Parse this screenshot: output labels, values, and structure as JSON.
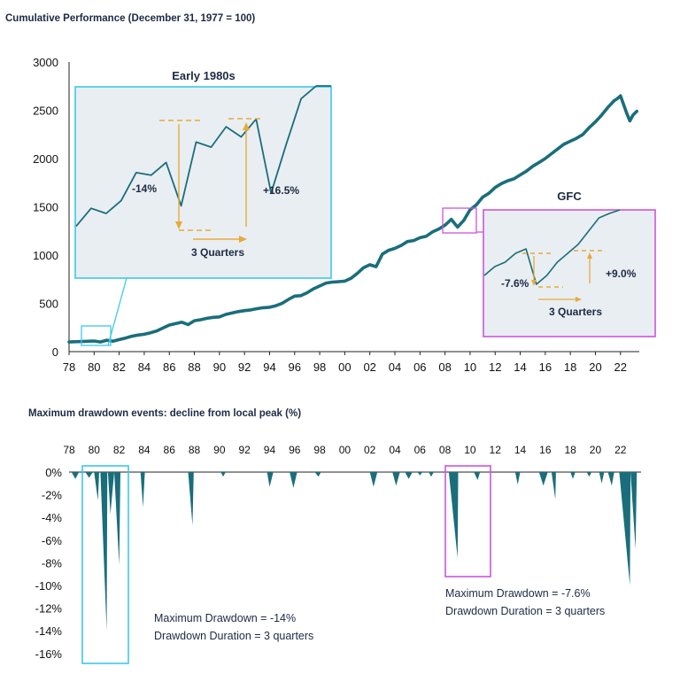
{
  "top_chart": {
    "title": "Cumulative Performance (December 31, 1977 = 100)",
    "y_ticks": [
      "3000",
      "2500",
      "2000",
      "1500",
      "1000",
      "500",
      "0"
    ],
    "x_ticks": [
      "78",
      "80",
      "82",
      "84",
      "86",
      "88",
      "90",
      "92",
      "94",
      "96",
      "98",
      "00",
      "02",
      "04",
      "06",
      "08",
      "10",
      "12",
      "14",
      "16",
      "18",
      "20",
      "22"
    ]
  },
  "inset_early": {
    "title": "Early 1980s",
    "drawdown_label": "-14%",
    "recovery_label": "+16.5%",
    "duration_label": "3 Quarters"
  },
  "inset_gfc": {
    "title": "GFC",
    "drawdown_label": "-7.6%",
    "recovery_label": "+9.0%",
    "duration_label": "3 Quarters"
  },
  "bottom_chart": {
    "title": "Maximum drawdown events: decline from local peak (%)",
    "y_ticks": [
      "0%",
      "-2%",
      "-4%",
      "-6%",
      "-8%",
      "-10%",
      "-12%",
      "-14%",
      "-16%"
    ],
    "x_ticks": [
      "78",
      "80",
      "82",
      "84",
      "86",
      "88",
      "90",
      "92",
      "94",
      "96",
      "98",
      "00",
      "02",
      "04",
      "06",
      "08",
      "10",
      "12",
      "14",
      "16",
      "18",
      "20",
      "22"
    ],
    "note_early_line1": "Maximum Drawdown = -14%",
    "note_early_line2": "Drawdown Duration = 3 quarters",
    "note_gfc_line1": "Maximum Drawdown = -7.6%",
    "note_gfc_line2": "Drawdown Duration = 3 quarters"
  },
  "colors": {
    "series": "#1a6e7b",
    "early": "#3cc8ea",
    "gfc": "#cc55dd",
    "arrow": "#e8aa3a",
    "inset_bg": "#e9eef2"
  },
  "chart_data": [
    {
      "type": "line",
      "title": "Cumulative Performance (December 31, 1977 = 100)",
      "xlabel": "",
      "ylabel": "",
      "ylim": [
        0,
        3000
      ],
      "xlim": [
        1978,
        2023.5
      ],
      "series": [
        {
          "name": "Cumulative Performance",
          "x": [
            1978,
            1979,
            1980,
            1980.5,
            1981,
            1981.5,
            1982,
            1982.5,
            1983,
            1983.5,
            1984,
            1984.5,
            1985,
            1985.5,
            1986,
            1986.5,
            1987,
            1987.5,
            1988,
            1988.5,
            1989,
            1989.5,
            1990,
            1990.5,
            1991,
            1991.5,
            1992,
            1992.5,
            1993,
            1993.5,
            1994,
            1994.5,
            1995,
            1995.5,
            1996,
            1996.5,
            1997,
            1997.5,
            1998,
            1998.5,
            1999,
            1999.5,
            2000,
            2000.5,
            2001,
            2001.5,
            2002,
            2002.5,
            2003,
            2003.5,
            2004,
            2004.5,
            2005,
            2005.5,
            2006,
            2006.5,
            2007,
            2007.5,
            2008,
            2008.25,
            2008.5,
            2009,
            2009.5,
            2010,
            2010.5,
            2011,
            2011.5,
            2012,
            2012.5,
            2013,
            2013.5,
            2014,
            2014.5,
            2015,
            2015.5,
            2016,
            2016.5,
            2017,
            2017.5,
            2018,
            2018.5,
            2019,
            2019.5,
            2020,
            2020.5,
            2021,
            2021.5,
            2021.75,
            2022,
            2022.25,
            2022.5,
            2022.75,
            2023,
            2023.3
          ],
          "values": [
            100,
            105,
            110,
            100,
            118,
            108,
            125,
            140,
            160,
            172,
            180,
            195,
            215,
            245,
            275,
            290,
            305,
            280,
            320,
            330,
            345,
            355,
            360,
            385,
            400,
            415,
            425,
            432,
            445,
            455,
            460,
            475,
            500,
            540,
            575,
            580,
            610,
            650,
            680,
            710,
            720,
            725,
            730,
            760,
            810,
            870,
            900,
            880,
            1010,
            1050,
            1070,
            1100,
            1140,
            1150,
            1180,
            1195,
            1240,
            1270,
            1310,
            1340,
            1370,
            1290,
            1360,
            1470,
            1520,
            1600,
            1640,
            1700,
            1740,
            1770,
            1790,
            1830,
            1870,
            1920,
            1960,
            2000,
            2050,
            2100,
            2150,
            2180,
            2210,
            2250,
            2320,
            2380,
            2450,
            2530,
            2600,
            2620,
            2650,
            2560,
            2470,
            2390,
            2450,
            2490
          ]
        }
      ]
    },
    {
      "type": "line",
      "title": "Early 1980s",
      "series": [
        {
          "name": "Early 1980s detail",
          "x": [
            0,
            1,
            2,
            3,
            4,
            5,
            6,
            7,
            8,
            9,
            10,
            11,
            12,
            13,
            14,
            15,
            16,
            17
          ],
          "values": [
            100,
            107,
            105,
            110,
            121,
            120,
            125,
            108,
            133,
            131,
            139,
            135,
            142,
            113,
            132,
            150,
            155,
            160
          ]
        }
      ],
      "annotations": [
        "-14%",
        "+16.5%",
        "3 Quarters"
      ]
    },
    {
      "type": "line",
      "title": "GFC",
      "series": [
        {
          "name": "GFC detail",
          "x": [
            0,
            1,
            2,
            3,
            4,
            5,
            6,
            7,
            8,
            9,
            10,
            11,
            12,
            13
          ],
          "values": [
            100,
            102,
            103,
            105,
            106,
            98,
            100,
            103,
            105,
            107,
            110,
            113,
            114,
            116
          ]
        }
      ],
      "annotations": [
        "-7.6%",
        "+9.0%",
        "3 Quarters"
      ]
    },
    {
      "type": "area",
      "title": "Maximum drawdown events: decline from local peak (%)",
      "xlabel": "",
      "ylabel": "",
      "ylim": [
        -16,
        0
      ],
      "xlim": [
        1978,
        2023.5
      ],
      "events": [
        {
          "peak": 1978.2,
          "trough": 1978.5,
          "end": 1978.8,
          "depth": -0.6
        },
        {
          "peak": 1979.3,
          "trough": 1979.6,
          "end": 1979.9,
          "depth": -0.5
        },
        {
          "peak": 1980.0,
          "trough": 1980.3,
          "end": 1980.4,
          "depth": -2.5
        },
        {
          "peak": 1980.5,
          "trough": 1981.0,
          "end": 1981.05,
          "depth": -14.0
        },
        {
          "peak": 1981.1,
          "trough": 1981.3,
          "end": 1981.6,
          "depth": -3.7
        },
        {
          "peak": 1981.6,
          "trough": 1982.0,
          "end": 1982.1,
          "depth": -8.2
        },
        {
          "peak": 1983.7,
          "trough": 1983.9,
          "end": 1984.05,
          "depth": -3.1
        },
        {
          "peak": 1987.5,
          "trough": 1987.85,
          "end": 1987.95,
          "depth": -4.7
        },
        {
          "peak": 1990.1,
          "trough": 1990.3,
          "end": 1990.5,
          "depth": -0.4
        },
        {
          "peak": 1993.8,
          "trough": 1994.0,
          "end": 1994.3,
          "depth": -1.3
        },
        {
          "peak": 1995.6,
          "trough": 1995.9,
          "end": 1996.2,
          "depth": -1.4
        },
        {
          "peak": 1997.6,
          "trough": 1997.9,
          "end": 1998.1,
          "depth": -0.4
        },
        {
          "peak": 2002.0,
          "trough": 2002.3,
          "end": 2002.6,
          "depth": -1.3
        },
        {
          "peak": 2003.8,
          "trough": 2004.1,
          "end": 2004.4,
          "depth": -1.2
        },
        {
          "peak": 2004.8,
          "trough": 2005.1,
          "end": 2005.4,
          "depth": -0.6
        },
        {
          "peak": 2005.8,
          "trough": 2006.0,
          "end": 2006.2,
          "depth": -0.3
        },
        {
          "peak": 2006.7,
          "trough": 2006.9,
          "end": 2007.1,
          "depth": -0.4
        },
        {
          "peak": 2008.3,
          "trough": 2009.0,
          "end": 2009.05,
          "depth": -7.6
        },
        {
          "peak": 2010.3,
          "trough": 2010.6,
          "end": 2010.8,
          "depth": -0.7
        },
        {
          "peak": 2013.6,
          "trough": 2013.8,
          "end": 2014.0,
          "depth": -1.1
        },
        {
          "peak": 2015.5,
          "trough": 2015.85,
          "end": 2016.2,
          "depth": -1.2
        },
        {
          "peak": 2016.5,
          "trough": 2016.8,
          "end": 2016.85,
          "depth": -2.4
        },
        {
          "peak": 2018.0,
          "trough": 2018.2,
          "end": 2018.4,
          "depth": -0.6
        },
        {
          "peak": 2019.3,
          "trough": 2019.5,
          "end": 2019.7,
          "depth": -0.4
        },
        {
          "peak": 2020.3,
          "trough": 2020.5,
          "end": 2020.7,
          "depth": -1.0
        },
        {
          "peak": 2021.0,
          "trough": 2021.3,
          "end": 2021.5,
          "depth": -1.2
        },
        {
          "peak": 2021.9,
          "trough": 2022.75,
          "end": 2022.8,
          "depth": -10.0
        },
        {
          "peak": 2022.8,
          "trough": 2023.2,
          "end": 2023.3,
          "depth": -6.8
        }
      ]
    }
  ]
}
